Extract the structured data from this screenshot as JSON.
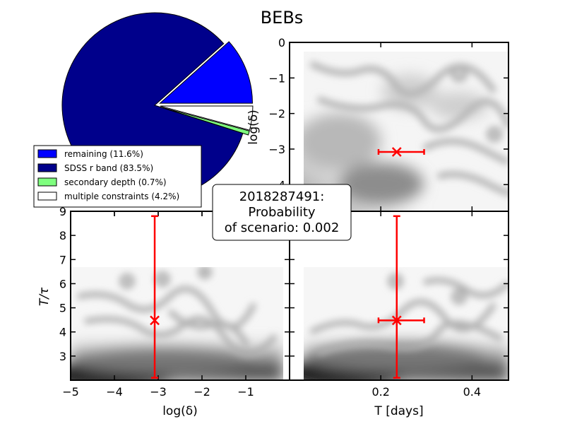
{
  "figure": {
    "title": "BEBs",
    "annotation": [
      "2018287491:",
      "Probability",
      "of scenario: 0.002"
    ]
  },
  "chart_data": [
    {
      "type": "pie",
      "labels": [
        "remaining (11.6%)",
        "SDSS r band (83.5%)",
        "secondary depth (0.7%)",
        "multiple constraints (4.2%)"
      ],
      "values": [
        11.6,
        83.5,
        0.7,
        4.2
      ],
      "colors": [
        "#0000ff",
        "#00008b",
        "#7fff7f",
        "#ffffff"
      ],
      "explode": [
        true,
        false,
        true,
        true
      ],
      "legend_placement": "lower-left"
    },
    {
      "type": "heatmap",
      "name": "T_vs_logdelta",
      "xlabel": "",
      "ylabel": "log(δ)",
      "xlim": [
        0.0,
        0.48
      ],
      "ylim": [
        -4.75,
        0.0
      ],
      "yticks": [
        0,
        -1,
        -2,
        -3,
        -4
      ],
      "yticklabels": [
        "0",
        "−1",
        "−2",
        "−3",
        "−4"
      ],
      "marker": {
        "x": 0.235,
        "y": -3.08,
        "xerr": [
          0.195,
          0.295
        ],
        "yerr": null
      }
    },
    {
      "type": "heatmap",
      "name": "logdelta_vs_Ttau",
      "xlabel": "log(δ)",
      "ylabel": "T/τ",
      "xlim": [
        -5.0,
        0.0
      ],
      "ylim": [
        2.0,
        9.0
      ],
      "xticks": [
        -5,
        -4,
        -3,
        -2,
        -1
      ],
      "xticklabels": [
        "−5",
        "−4",
        "−3",
        "−2",
        "−1"
      ],
      "yticks": [
        3,
        4,
        5,
        6,
        7,
        8,
        9
      ],
      "yticklabels": [
        "3",
        "4",
        "5",
        "6",
        "7",
        "8",
        "9"
      ],
      "marker": {
        "x": -3.08,
        "y": 4.48,
        "xerr": null,
        "yerr": [
          2.1,
          8.8
        ]
      }
    },
    {
      "type": "heatmap",
      "name": "T_vs_Ttau",
      "xlabel": "T [days]",
      "ylabel": "",
      "xlim": [
        0.0,
        0.48
      ],
      "ylim": [
        2.0,
        9.0
      ],
      "xticks": [
        0.2,
        0.4
      ],
      "xticklabels": [
        "0.2",
        "0.4"
      ],
      "marker": {
        "x": 0.235,
        "y": 4.48,
        "xerr": [
          0.195,
          0.295
        ],
        "yerr": [
          2.1,
          8.8
        ]
      }
    }
  ]
}
